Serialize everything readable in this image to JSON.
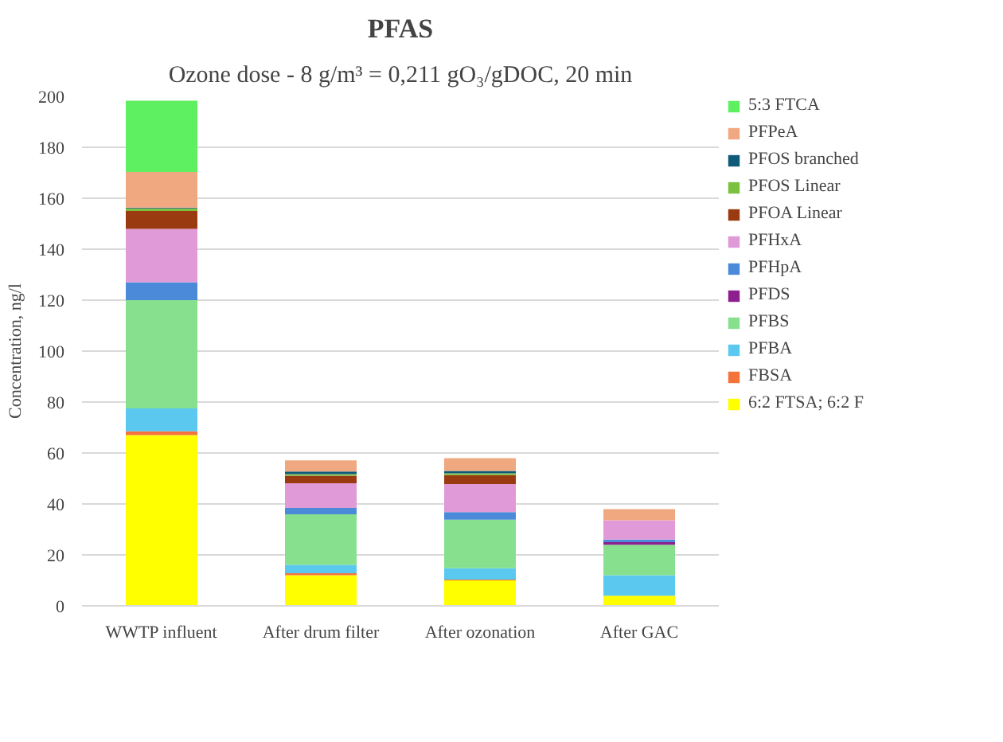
{
  "chart_data": {
    "type": "bar",
    "stacked": true,
    "title": "PFAS",
    "subtitle": "Ozone dose - 8 g/m³ = 0,211 gO₃/gDOC, 20 min",
    "ylabel": "Concentration, ng/l",
    "categories": [
      "WWTP influent",
      "After drum filter",
      "After ozonation",
      "After GAC"
    ],
    "ylim": [
      0,
      200
    ],
    "yticks": [
      0,
      20,
      40,
      60,
      80,
      100,
      120,
      140,
      160,
      180,
      200
    ],
    "grid": "y",
    "legend": "right",
    "series": [
      {
        "name": "6:2 FTSA; 6:2 F",
        "color": "#ffff00",
        "values": [
          67,
          12,
          10,
          4
        ]
      },
      {
        "name": "FBSA",
        "color": "#f4733a",
        "values": [
          1.5,
          0.8,
          0.3,
          0
        ]
      },
      {
        "name": "PFBA",
        "color": "#5bc8f0",
        "values": [
          9,
          3.3,
          4.5,
          8
        ]
      },
      {
        "name": "PFBS",
        "color": "#86e08e",
        "values": [
          42.5,
          19.8,
          19,
          12
        ]
      },
      {
        "name": "PFDS",
        "color": "#8e1f8e",
        "values": [
          0,
          0,
          0,
          1
        ]
      },
      {
        "name": "PFHpA",
        "color": "#4a8ad8",
        "values": [
          7,
          2.5,
          3,
          1
        ]
      },
      {
        "name": "PFHxA",
        "color": "#e09ad8",
        "values": [
          21,
          9.7,
          11,
          7.6
        ]
      },
      {
        "name": "PFOA Linear",
        "color": "#9a3a10",
        "values": [
          7,
          3,
          3.5,
          0
        ]
      },
      {
        "name": "PFOS Linear",
        "color": "#7cc040",
        "values": [
          1,
          0.6,
          0.7,
          0
        ]
      },
      {
        "name": "PFOS branched",
        "color": "#0e5a78",
        "values": [
          0.3,
          1,
          1,
          0
        ]
      },
      {
        "name": "PFPeA",
        "color": "#f0a880",
        "values": [
          14,
          4.4,
          5,
          4.4
        ]
      },
      {
        "name": "5:3 FTCA",
        "color": "#5ef060",
        "values": [
          28,
          0,
          0,
          0
        ]
      }
    ]
  }
}
